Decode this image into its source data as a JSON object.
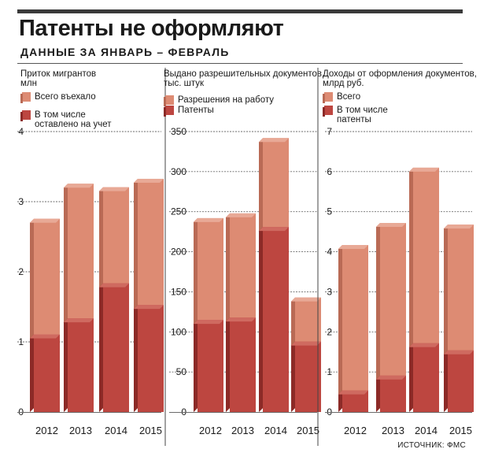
{
  "title": "Патенты не оформляют",
  "subtitle": "ДАННЫЕ ЗА ЯНВАРЬ – ФЕВРАЛЬ",
  "source": "ИСТОЧНИК: ФМС",
  "colors": {
    "light": "#dd8b73",
    "light_side": "#b96a55",
    "dark": "#bd4640",
    "dark_side": "#8c2a27",
    "cap": "#e8a996"
  },
  "chart_data": [
    {
      "type": "bar",
      "title": "Приток мигрантов млн",
      "categories": [
        "2012",
        "2013",
        "2014",
        "2015"
      ],
      "series": [
        {
          "name": "Всего въехало",
          "values": [
            2.7,
            3.2,
            3.15,
            3.27
          ]
        },
        {
          "name": "В том числе оставлено на учет",
          "values": [
            1.05,
            1.28,
            1.78,
            1.47
          ]
        }
      ],
      "ylim": [
        0,
        4
      ],
      "yticks": [
        "0",
        "1",
        "2",
        "3",
        "4"
      ],
      "grid": true,
      "legend": "top-left"
    },
    {
      "type": "bar",
      "title": "Выдано разрешительных документов, тыс. штук",
      "categories": [
        "2012",
        "2013",
        "2014",
        "2015"
      ],
      "series": [
        {
          "name": "Разрешения на работу",
          "values": [
            237,
            243,
            337,
            138
          ]
        },
        {
          "name": "Патенты",
          "values": [
            110,
            113,
            226,
            83
          ]
        }
      ],
      "ylim": [
        0,
        350
      ],
      "yticks": [
        "0",
        "50",
        "100",
        "150",
        "200",
        "250",
        "300",
        "350"
      ],
      "grid": true,
      "legend": "top-left"
    },
    {
      "type": "bar",
      "title": "Доходы от оформления документов, млрд руб.",
      "categories": [
        "2012",
        "2013",
        "2014",
        "2015"
      ],
      "series": [
        {
          "name": "Всего",
          "values": [
            4.07,
            4.62,
            6.0,
            4.58
          ]
        },
        {
          "name": "В том числе патенты",
          "values": [
            0.44,
            0.81,
            1.62,
            1.44
          ]
        }
      ],
      "ylim": [
        0,
        7
      ],
      "yticks": [
        "0",
        "1",
        "2",
        "3",
        "4",
        "5",
        "6",
        "7"
      ],
      "grid": true,
      "legend": "top-left"
    }
  ]
}
